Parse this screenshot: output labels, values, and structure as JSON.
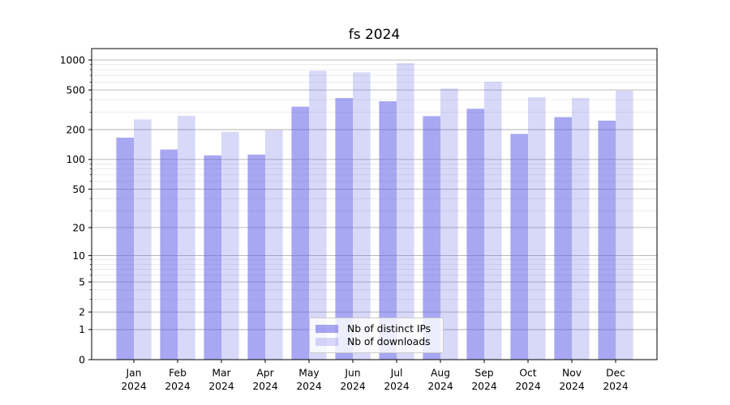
{
  "chart_data": {
    "type": "bar",
    "title": "fs 2024",
    "categories": [
      "Jan",
      "Feb",
      "Mar",
      "Apr",
      "May",
      "Jun",
      "Jul",
      "Aug",
      "Sep",
      "Oct",
      "Nov",
      "Dec"
    ],
    "x_tick_second_line": "2024",
    "series": [
      {
        "name": "Nb of distinct IPs",
        "base_color": "#6464e8",
        "alpha": 0.57,
        "rendered_color": "#a8a8f2",
        "values": [
          166,
          126,
          110,
          112,
          340,
          415,
          385,
          273,
          324,
          181,
          267,
          246
        ]
      },
      {
        "name": "Nb of downloads",
        "base_color": "#6464e8",
        "alpha": 0.25,
        "rendered_color": "#d9d9fa",
        "values": [
          253,
          275,
          190,
          197,
          780,
          750,
          930,
          517,
          605,
          424,
          416,
          492
        ]
      }
    ],
    "y_scale": "log1p",
    "ylim": [
      0,
      1300
    ],
    "y_major_ticks": [
      0,
      1,
      2,
      5,
      10,
      20,
      50,
      100,
      200,
      500,
      1000
    ],
    "y_minor_ticks": [
      3,
      4,
      6,
      7,
      8,
      9,
      30,
      40,
      60,
      70,
      80,
      90,
      300,
      400,
      600,
      700,
      800,
      900
    ],
    "grid": "on",
    "legend_position": "lower center",
    "colors": {
      "major_grid": "#b0b0b0",
      "minor_grid": "#e6e6e6",
      "axis": "#000000",
      "text": "#000000",
      "background": "#ffffff"
    }
  }
}
